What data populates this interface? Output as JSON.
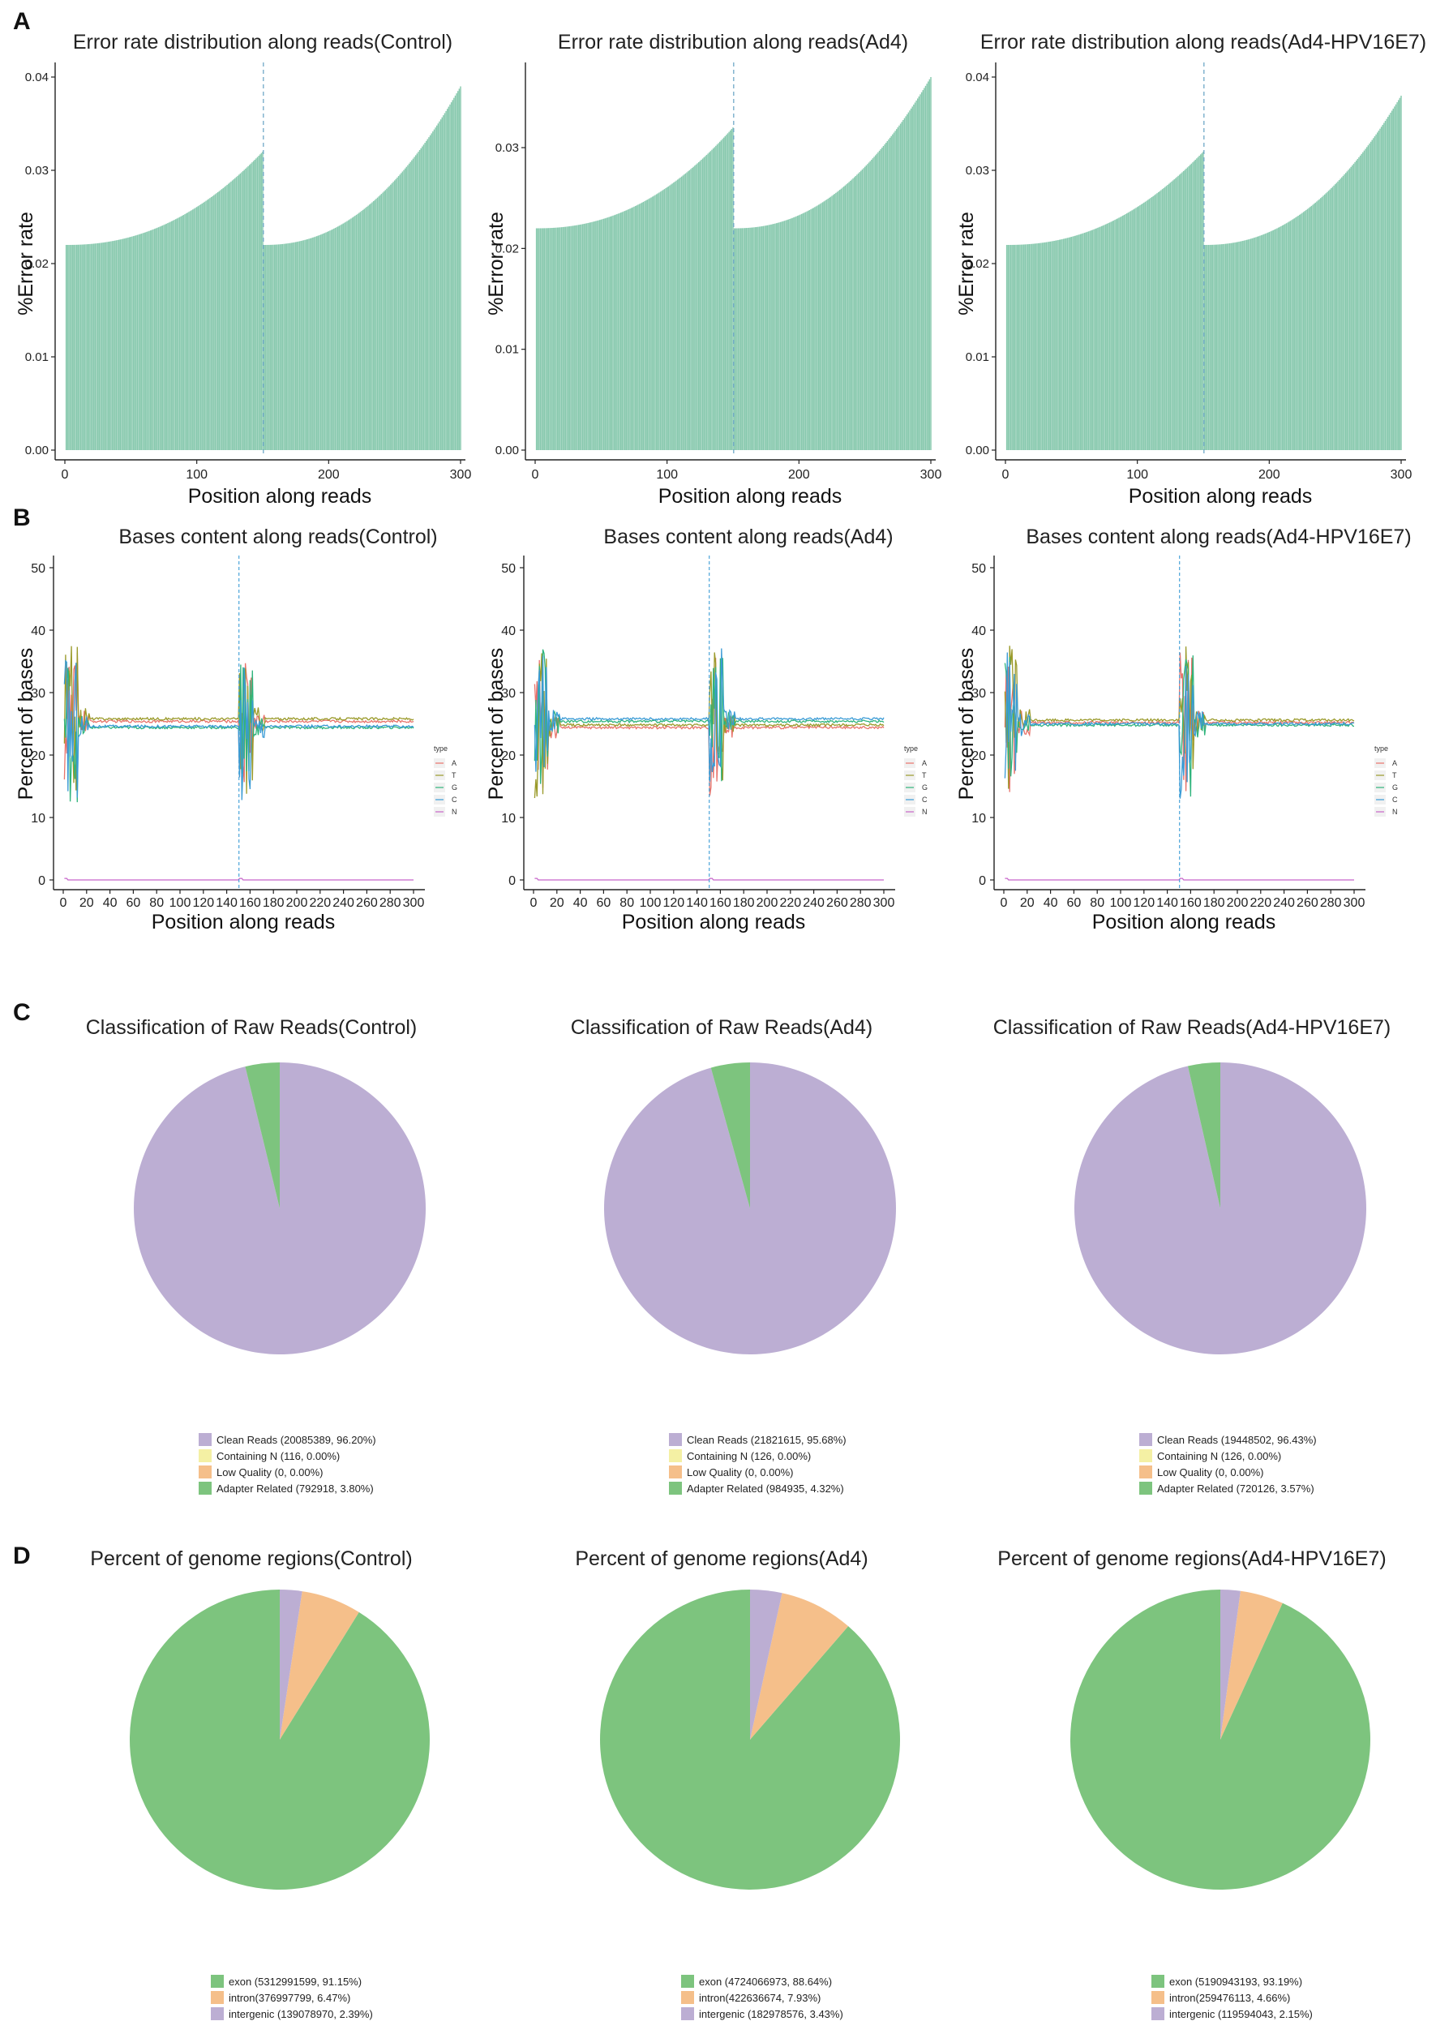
{
  "panels": {
    "A": "A",
    "B": "B",
    "C": "C",
    "D": "D"
  },
  "chart_data": [
    {
      "id": "error-control",
      "type": "bar",
      "title": "Error rate distribution along reads(Control)",
      "xlabel": "Position along reads",
      "ylabel": "%Error rate",
      "xlim": [
        0,
        300
      ],
      "ylim": [
        0,
        0.04
      ],
      "xticks": [
        "0",
        "100",
        "200",
        "300"
      ],
      "yticks": [
        "0.00",
        "0.01",
        "0.02",
        "0.03",
        "0.04"
      ],
      "read_split": 150,
      "profile": {
        "read1_start": 0.022,
        "read1_end": 0.032,
        "read2_start": 0.022,
        "read2_end": 0.039
      },
      "color": "#88C9AE"
    },
    {
      "id": "error-ad4",
      "type": "bar",
      "title": "Error rate distribution along reads(Ad4)",
      "xlabel": "Position along reads",
      "ylabel": "%Error rate",
      "xlim": [
        0,
        300
      ],
      "ylim": [
        0,
        0.037
      ],
      "xticks": [
        "0",
        "100",
        "200",
        "300"
      ],
      "yticks": [
        "0.00",
        "0.01",
        "0.02",
        "0.03"
      ],
      "read_split": 150,
      "profile": {
        "read1_start": 0.022,
        "read1_end": 0.032,
        "read2_start": 0.022,
        "read2_end": 0.037
      },
      "color": "#88C9AE"
    },
    {
      "id": "error-hpv",
      "type": "bar",
      "title": "Error rate distribution along reads(Ad4-HPV16E7)",
      "xlabel": "Position along reads",
      "ylabel": "%Error rate",
      "xlim": [
        0,
        300
      ],
      "ylim": [
        0,
        0.04
      ],
      "xticks": [
        "0",
        "100",
        "200",
        "300"
      ],
      "yticks": [
        "0.00",
        "0.01",
        "0.02",
        "0.03",
        "0.04"
      ],
      "read_split": 150,
      "profile": {
        "read1_start": 0.022,
        "read1_end": 0.032,
        "read2_start": 0.022,
        "read2_end": 0.038
      },
      "color": "#88C9AE"
    },
    {
      "id": "bases-control",
      "type": "line",
      "title": "Bases content along reads(Control)",
      "xlabel": "Position along reads",
      "ylabel": "Percent of bases",
      "xlim": [
        0,
        300
      ],
      "ylim": [
        0,
        50
      ],
      "xticks": [
        "0",
        "20",
        "40",
        "60",
        "80",
        "100",
        "120",
        "140",
        "160",
        "180",
        "200",
        "220",
        "240",
        "260",
        "280",
        "300"
      ],
      "yticks": [
        "0",
        "10",
        "20",
        "30",
        "40",
        "50"
      ],
      "read_split": 150,
      "legend_title": "type",
      "series": [
        {
          "name": "A",
          "color": "#E8736B",
          "plateau": 25.4
        },
        {
          "name": "T",
          "color": "#9A9A2A",
          "plateau": 25.8
        },
        {
          "name": "G",
          "color": "#2FB47C",
          "plateau": 24.4
        },
        {
          "name": "C",
          "color": "#3A9BD5",
          "plateau": 24.6
        },
        {
          "name": "N",
          "color": "#C765C9",
          "plateau": 0
        }
      ]
    },
    {
      "id": "bases-ad4",
      "type": "line",
      "title": "Bases content along reads(Ad4)",
      "xlabel": "Position along reads",
      "ylabel": "Percent of bases",
      "xlim": [
        0,
        300
      ],
      "ylim": [
        0,
        50
      ],
      "xticks": [
        "0",
        "20",
        "40",
        "60",
        "80",
        "100",
        "120",
        "140",
        "160",
        "180",
        "200",
        "220",
        "240",
        "260",
        "280",
        "300"
      ],
      "yticks": [
        "0",
        "10",
        "20",
        "30",
        "40",
        "50"
      ],
      "read_split": 150,
      "legend_title": "type",
      "series": [
        {
          "name": "A",
          "color": "#E8736B",
          "plateau": 24.4
        },
        {
          "name": "T",
          "color": "#9A9A2A",
          "plateau": 24.8
        },
        {
          "name": "G",
          "color": "#2FB47C",
          "plateau": 25.4
        },
        {
          "name": "C",
          "color": "#3A9BD5",
          "plateau": 25.8
        },
        {
          "name": "N",
          "color": "#C765C9",
          "plateau": 0
        }
      ]
    },
    {
      "id": "bases-hpv",
      "type": "line",
      "title": "Bases content along reads(Ad4-HPV16E7)",
      "xlabel": "Position along reads",
      "ylabel": "Percent of bases",
      "xlim": [
        0,
        300
      ],
      "ylim": [
        0,
        50
      ],
      "xticks": [
        "0",
        "20",
        "40",
        "60",
        "80",
        "100",
        "120",
        "140",
        "160",
        "180",
        "200",
        "220",
        "240",
        "260",
        "280",
        "300"
      ],
      "yticks": [
        "0",
        "10",
        "20",
        "30",
        "40",
        "50"
      ],
      "read_split": 150,
      "legend_title": "type",
      "series": [
        {
          "name": "A",
          "color": "#E8736B",
          "plateau": 25.2
        },
        {
          "name": "T",
          "color": "#9A9A2A",
          "plateau": 25.6
        },
        {
          "name": "G",
          "color": "#2FB47C",
          "plateau": 24.8
        },
        {
          "name": "C",
          "color": "#3A9BD5",
          "plateau": 25.0
        },
        {
          "name": "N",
          "color": "#C765C9",
          "plateau": 0
        }
      ]
    },
    {
      "id": "raw-control",
      "type": "pie",
      "title": "Classification of Raw Reads(Control)",
      "slices": [
        {
          "label": "Clean Reads (20085389, 96.20%)",
          "value": 96.2,
          "color": "#BCAED3"
        },
        {
          "label": "Containing N (116, 0.00%)",
          "value": 0.0,
          "color": "#F4F0A4"
        },
        {
          "label": "Low Quality (0, 0.00%)",
          "value": 0.0,
          "color": "#F5BF8A"
        },
        {
          "label": "Adapter Related (792918, 3.80%)",
          "value": 3.8,
          "color": "#7DC47E"
        }
      ]
    },
    {
      "id": "raw-ad4",
      "type": "pie",
      "title": "Classification of Raw Reads(Ad4)",
      "slices": [
        {
          "label": "Clean Reads (21821615, 95.68%)",
          "value": 95.68,
          "color": "#BCAED3"
        },
        {
          "label": "Containing N (126, 0.00%)",
          "value": 0.0,
          "color": "#F4F0A4"
        },
        {
          "label": "Low Quality (0, 0.00%)",
          "value": 0.0,
          "color": "#F5BF8A"
        },
        {
          "label": "Adapter Related (984935, 4.32%)",
          "value": 4.32,
          "color": "#7DC47E"
        }
      ]
    },
    {
      "id": "raw-hpv",
      "type": "pie",
      "title": "Classification of Raw Reads(Ad4-HPV16E7)",
      "slices": [
        {
          "label": "Clean Reads (19448502, 96.43%)",
          "value": 96.43,
          "color": "#BCAED3"
        },
        {
          "label": "Containing N (126, 0.00%)",
          "value": 0.0,
          "color": "#F4F0A4"
        },
        {
          "label": "Low Quality (0, 0.00%)",
          "value": 0.0,
          "color": "#F5BF8A"
        },
        {
          "label": "Adapter Related (720126, 3.57%)",
          "value": 3.57,
          "color": "#7DC47E"
        }
      ]
    },
    {
      "id": "genome-control",
      "type": "pie",
      "title": "Percent of genome regions(Control)",
      "slices": [
        {
          "label": "exon (5312991599, 91.15%)",
          "value": 91.15,
          "color": "#7DC47E"
        },
        {
          "label": "intron(376997799, 6.47%)",
          "value": 6.47,
          "color": "#F5BF8A"
        },
        {
          "label": "intergenic (139078970, 2.39%)",
          "value": 2.39,
          "color": "#BCAED3"
        }
      ]
    },
    {
      "id": "genome-ad4",
      "type": "pie",
      "title": "Percent of genome regions(Ad4)",
      "slices": [
        {
          "label": "exon (4724066973, 88.64%)",
          "value": 88.64,
          "color": "#7DC47E"
        },
        {
          "label": "intron(422636674, 7.93%)",
          "value": 7.93,
          "color": "#F5BF8A"
        },
        {
          "label": "intergenic (182978576, 3.43%)",
          "value": 3.43,
          "color": "#BCAED3"
        }
      ]
    },
    {
      "id": "genome-hpv",
      "type": "pie",
      "title": "Percent of genome regions(Ad4-HPV16E7)",
      "slices": [
        {
          "label": "exon (5190943193, 93.19%)",
          "value": 93.19,
          "color": "#7DC47E"
        },
        {
          "label": "intron(259476113, 4.66%)",
          "value": 4.66,
          "color": "#F5BF8A"
        },
        {
          "label": "intergenic (119594043, 2.15%)",
          "value": 2.15,
          "color": "#BCAED3"
        }
      ]
    }
  ]
}
